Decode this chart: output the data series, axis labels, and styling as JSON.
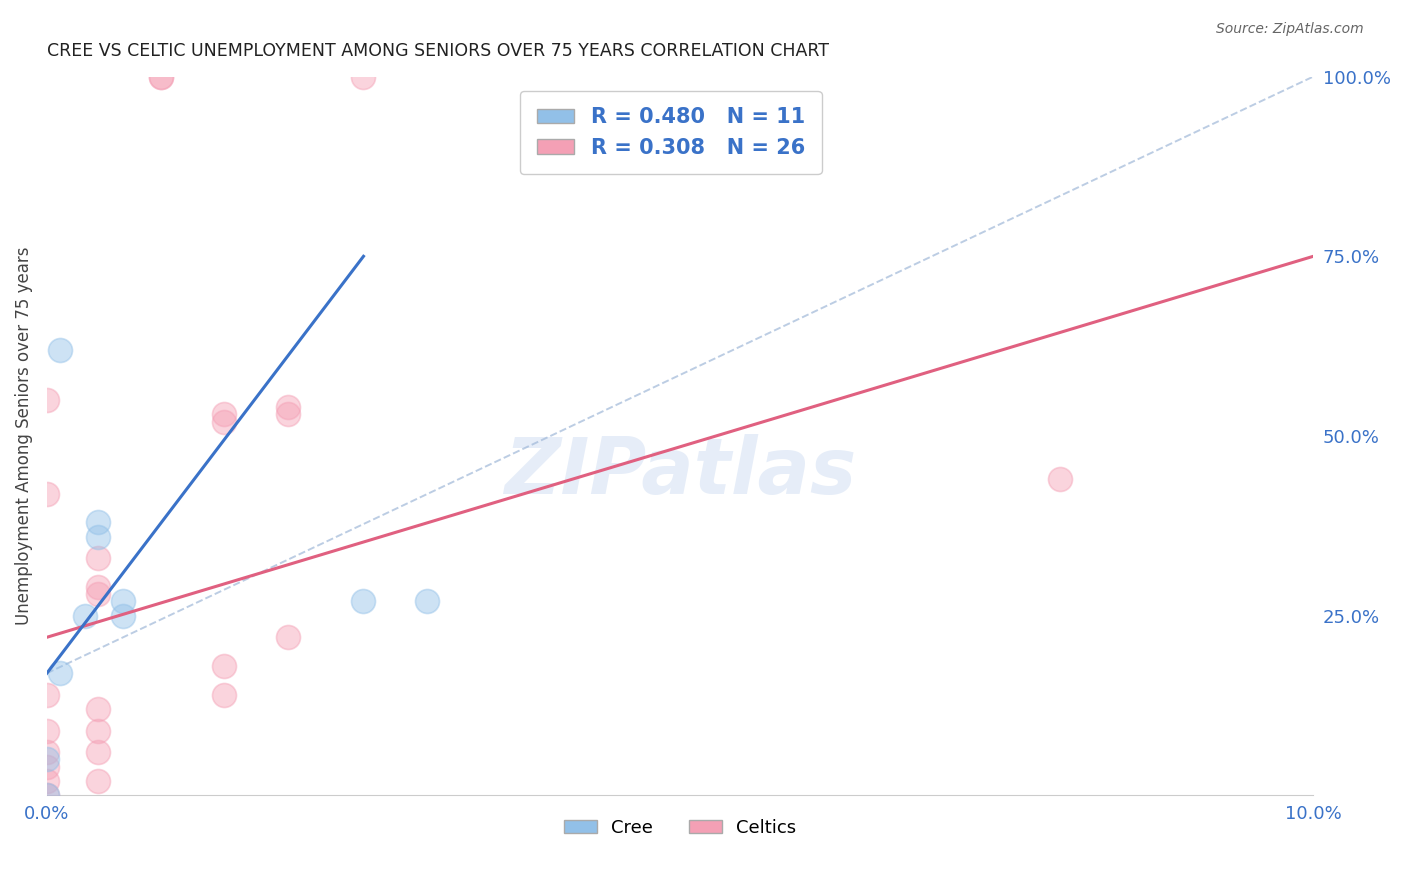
{
  "title": "CREE VS CELTIC UNEMPLOYMENT AMONG SENIORS OVER 75 YEARS CORRELATION CHART",
  "source": "Source: ZipAtlas.com",
  "ylabel": "Unemployment Among Seniors over 75 years",
  "cree_R": 0.48,
  "cree_N": 11,
  "celtics_R": 0.308,
  "celtics_N": 26,
  "cree_color": "#92C0E8",
  "celtics_color": "#F4A0B5",
  "cree_scatter": [
    [
      0.001,
      0.62
    ],
    [
      0.001,
      0.17
    ],
    [
      0.004,
      0.38
    ],
    [
      0.004,
      0.36
    ],
    [
      0.006,
      0.27
    ],
    [
      0.006,
      0.25
    ],
    [
      0.003,
      0.25
    ],
    [
      0.025,
      0.27
    ],
    [
      0.03,
      0.27
    ],
    [
      0.0,
      0.05
    ],
    [
      0.0,
      0.0
    ]
  ],
  "celtics_scatter": [
    [
      0.0,
      0.55
    ],
    [
      0.0,
      0.42
    ],
    [
      0.0,
      0.14
    ],
    [
      0.0,
      0.09
    ],
    [
      0.0,
      0.06
    ],
    [
      0.0,
      0.04
    ],
    [
      0.0,
      0.02
    ],
    [
      0.0,
      0.0
    ],
    [
      0.004,
      0.33
    ],
    [
      0.004,
      0.29
    ],
    [
      0.004,
      0.28
    ],
    [
      0.004,
      0.12
    ],
    [
      0.004,
      0.09
    ],
    [
      0.004,
      0.06
    ],
    [
      0.009,
      1.0
    ],
    [
      0.009,
      1.0
    ],
    [
      0.014,
      0.53
    ],
    [
      0.014,
      0.52
    ],
    [
      0.014,
      0.18
    ],
    [
      0.014,
      0.14
    ],
    [
      0.019,
      0.54
    ],
    [
      0.019,
      0.53
    ],
    [
      0.019,
      0.22
    ],
    [
      0.025,
      1.0
    ],
    [
      0.08,
      0.44
    ],
    [
      0.004,
      0.02
    ]
  ],
  "cree_line": [
    [
      0.0,
      0.17
    ],
    [
      0.025,
      0.75
    ]
  ],
  "celtics_line": [
    [
      0.0,
      0.22
    ],
    [
      0.1,
      0.75
    ]
  ],
  "cree_dash_line": [
    [
      0.025,
      0.75
    ],
    [
      0.1,
      1.0
    ]
  ],
  "background_color": "#FFFFFF",
  "grid_color": "#E0E0E0",
  "watermark_text": "ZIPatlas",
  "xlim": [
    0.0,
    0.1
  ],
  "ylim": [
    0.0,
    1.0
  ],
  "yticks": [
    0.0,
    0.25,
    0.5,
    0.75,
    1.0
  ],
  "ytick_labels": [
    "",
    "25.0%",
    "50.0%",
    "75.0%",
    "100.0%"
  ],
  "xticks": [
    0.0,
    0.025,
    0.05,
    0.075,
    0.1
  ],
  "xtick_labels": [
    "0.0%",
    "",
    "",
    "",
    "10.0%"
  ]
}
